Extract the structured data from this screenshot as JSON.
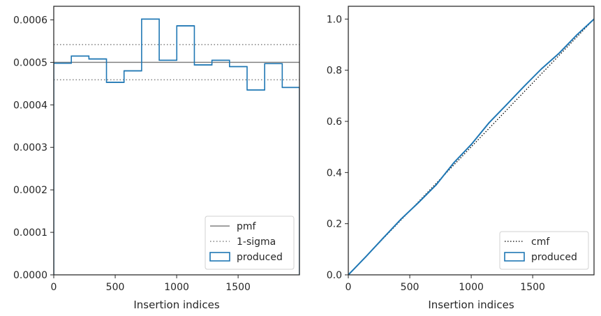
{
  "chart_data": [
    {
      "type": "histogram",
      "xlabel": "Insertion indices",
      "ylabel": "",
      "xlim": [
        0,
        1999
      ],
      "ylim": [
        0,
        0.000632
      ],
      "xticks": [
        0,
        500,
        1000,
        1500
      ],
      "xtick_labels": [
        "0",
        "500",
        "1000",
        "1500"
      ],
      "yticks": [
        0,
        0.0001,
        0.0002,
        0.0003,
        0.0004,
        0.0005,
        0.0006
      ],
      "ytick_labels": [
        "0.0000",
        "0.0001",
        "0.0002",
        "0.0003",
        "0.0004",
        "0.0005",
        "0.0006"
      ],
      "bin_edges": [
        0,
        143,
        286,
        429,
        572,
        715,
        858,
        1001,
        1144,
        1287,
        1430,
        1573,
        1716,
        1859,
        1999
      ],
      "series": [
        {
          "name": "produced",
          "kind": "step",
          "values": [
            0.000498,
            0.000515,
            0.000508,
            0.000453,
            0.00048,
            0.000602,
            0.000505,
            0.000586,
            0.000494,
            0.000505,
            0.00049,
            0.000435,
            0.000497,
            0.000441
          ]
        }
      ],
      "reference_lines": [
        {
          "name": "pmf",
          "value": 0.0005,
          "style": "solid"
        },
        {
          "name": "1-sigma",
          "value": 0.000542,
          "style": "dotted"
        },
        {
          "value": 0.000459,
          "style": "dotted"
        }
      ],
      "legend": {
        "placement": "lower-right",
        "entries": [
          "pmf",
          "1-sigma",
          "produced"
        ]
      },
      "colors": {
        "produced": "#1f77b4",
        "pmf": "#808080",
        "sigma": "#808080"
      }
    },
    {
      "type": "line",
      "xlabel": "Insertion indices",
      "ylabel": "",
      "xlim": [
        0,
        1999
      ],
      "ylim": [
        0,
        1.05
      ],
      "xticks": [
        0,
        500,
        1000,
        1500
      ],
      "xtick_labels": [
        "0",
        "500",
        "1000",
        "1500"
      ],
      "yticks": [
        0,
        0.2,
        0.4,
        0.6,
        0.8,
        1.0
      ],
      "ytick_labels": [
        "0.0",
        "0.2",
        "0.4",
        "0.6",
        "0.8",
        "1.0"
      ],
      "series": [
        {
          "name": "cmf",
          "style": "dotted",
          "x": [
            0,
            1999
          ],
          "y": [
            0,
            1.0
          ]
        },
        {
          "name": "produced",
          "style": "solid",
          "x": [
            0,
            143,
            286,
            429,
            572,
            715,
            858,
            1001,
            1144,
            1287,
            1430,
            1573,
            1716,
            1859,
            1999
          ],
          "y": [
            0,
            0.071,
            0.145,
            0.218,
            0.283,
            0.352,
            0.438,
            0.51,
            0.594,
            0.665,
            0.737,
            0.806,
            0.867,
            0.938,
            1.0
          ]
        }
      ],
      "legend": {
        "placement": "lower-right",
        "entries": [
          "cmf",
          "produced"
        ]
      },
      "colors": {
        "produced": "#1f77b4",
        "cmf": "#000000"
      }
    }
  ]
}
